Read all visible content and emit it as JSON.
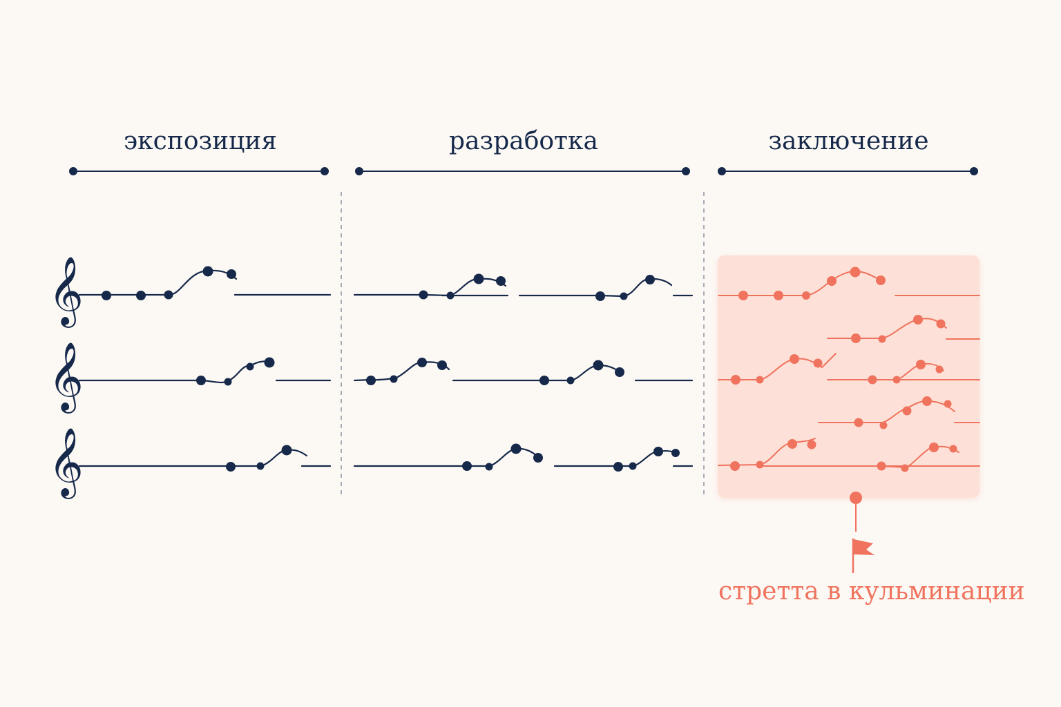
{
  "sections": [
    {
      "id": "exposition",
      "label": "экспозиция"
    },
    {
      "id": "development",
      "label": "разработка"
    },
    {
      "id": "conclusion",
      "label": "заключение"
    }
  ],
  "clef_glyph": "𝄞",
  "highlight": {
    "label": "стретта в кульминации"
  },
  "colors": {
    "background": "#fcf9f5",
    "ink": "#16294a",
    "accent": "#f0735e",
    "highlight_fill": "#fde0d7",
    "separator": "#8c93a3"
  },
  "icons": [
    "treble-clef-icon",
    "flag-icon"
  ]
}
